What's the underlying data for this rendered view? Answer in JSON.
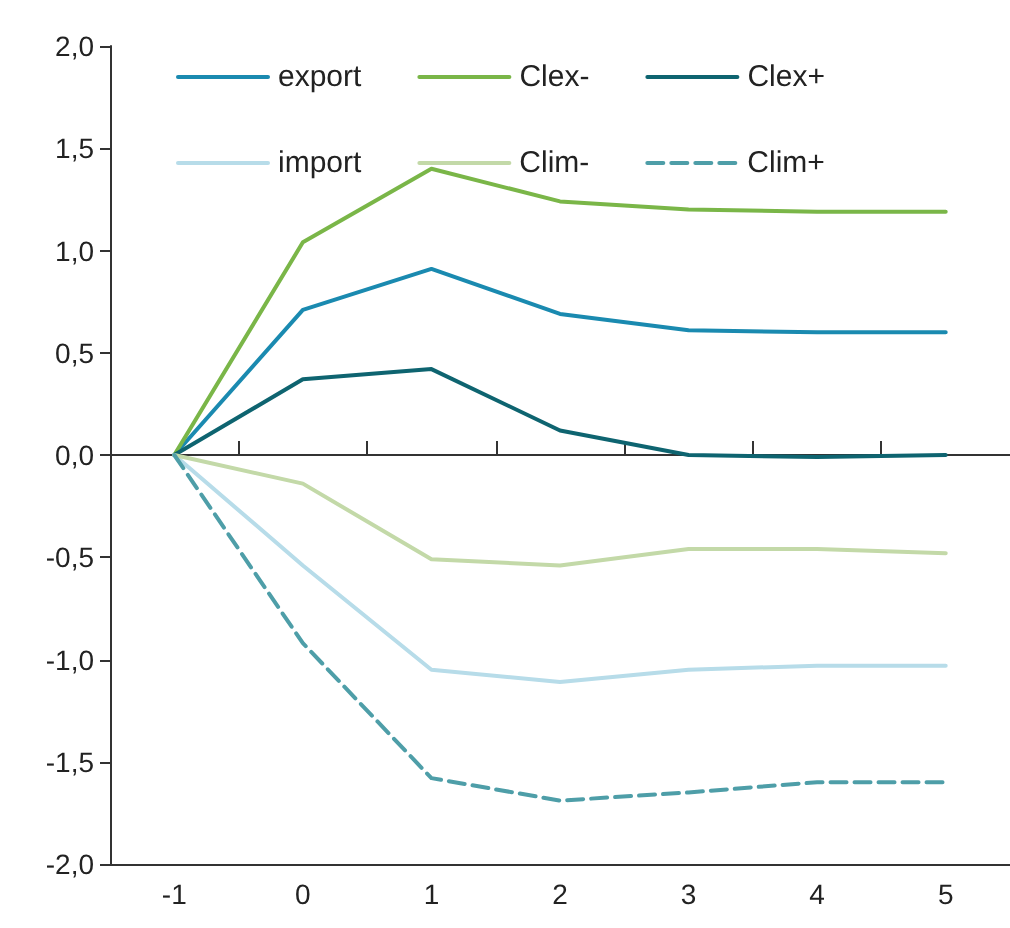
{
  "chart_data": {
    "type": "line",
    "categories": [
      "-1",
      "0",
      "1",
      "2",
      "3",
      "4",
      "5"
    ],
    "series": [
      {
        "name": "export",
        "color": "#1a8ab0",
        "values": [
          0,
          0.71,
          0.91,
          0.69,
          0.61,
          0.6,
          0.6
        ]
      },
      {
        "name": "Clex-",
        "color": "#7ab648",
        "values": [
          0,
          1.04,
          1.4,
          1.24,
          1.2,
          1.19,
          1.19
        ]
      },
      {
        "name": "Clex+",
        "color": "#0e6470",
        "values": [
          0,
          0.37,
          0.42,
          0.12,
          0,
          -0.01,
          0
        ]
      },
      {
        "name": "import",
        "color": "#b7dce9",
        "values": [
          0,
          -0.54,
          -1.05,
          -1.11,
          -1.05,
          -1.03,
          -1.03
        ]
      },
      {
        "name": "Clim-",
        "color": "#c3d9a8",
        "values": [
          0,
          -0.14,
          -0.51,
          -0.54,
          -0.46,
          -0.46,
          -0.48
        ]
      },
      {
        "name": "Clim+",
        "color": "#4e9ea8",
        "values": [
          0,
          -0.92,
          -1.58,
          -1.69,
          -1.65,
          -1.6,
          -1.6
        ],
        "line_style": "dashed"
      }
    ],
    "ylim": [
      -2,
      2
    ],
    "yticks": [
      {
        "value": -2,
        "label": "-2,0"
      },
      {
        "value": -1.5,
        "label": "-1,5"
      },
      {
        "value": -1,
        "label": "-1,0"
      },
      {
        "value": -0.5,
        "label": "-0,5"
      },
      {
        "value": 0,
        "label": "0,0"
      },
      {
        "value": 0.5,
        "label": "0,5"
      },
      {
        "value": 1,
        "label": "1,0"
      },
      {
        "value": 1.5,
        "label": "1,5"
      },
      {
        "value": 2,
        "label": "2,0"
      }
    ],
    "legend": "top",
    "marker": "none",
    "line_style": "solid"
  }
}
